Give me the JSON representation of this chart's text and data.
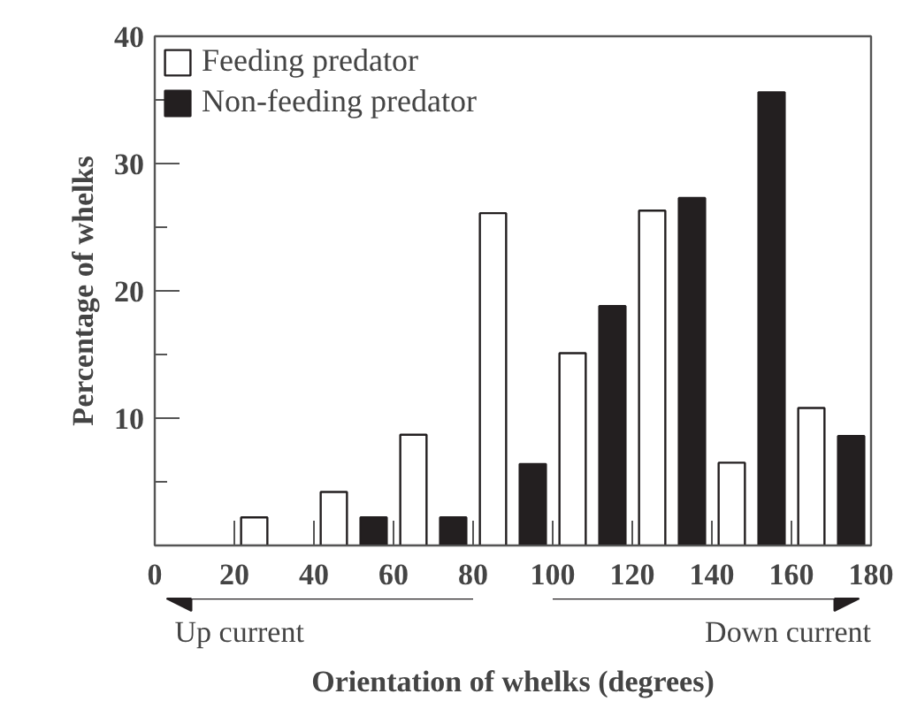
{
  "chart_data": {
    "type": "histogram",
    "xlabel": "Orientation of whelks (degrees)",
    "ylabel": "Percentage of whelks",
    "bins": [
      0,
      20,
      40,
      60,
      80,
      100,
      120,
      140,
      160,
      180
    ],
    "series": [
      {
        "name": "Feeding predator",
        "color": "#ffffff",
        "values": [
          0,
          2.2,
          4.2,
          8.7,
          26.1,
          15.1,
          26.3,
          6.5,
          10.8
        ]
      },
      {
        "name": "Non-feeding predator",
        "color": "#231f20",
        "values": [
          0,
          0,
          2.2,
          2.2,
          6.4,
          18.8,
          27.3,
          35.6,
          8.6
        ]
      }
    ],
    "xlim": [
      0,
      180
    ],
    "xticks": [
      0,
      20,
      40,
      60,
      80,
      100,
      120,
      140,
      160,
      180
    ],
    "ylim": [
      0,
      40
    ],
    "yticks": [
      {
        "value": 5,
        "label": null
      },
      10,
      {
        "value": 15,
        "label": null
      },
      20,
      {
        "value": 25,
        "label": null
      },
      30,
      {
        "value": 35,
        "label": null
      },
      40
    ],
    "legend": "top left",
    "grid": false,
    "annotations": [
      "Up current",
      "Down current"
    ]
  }
}
